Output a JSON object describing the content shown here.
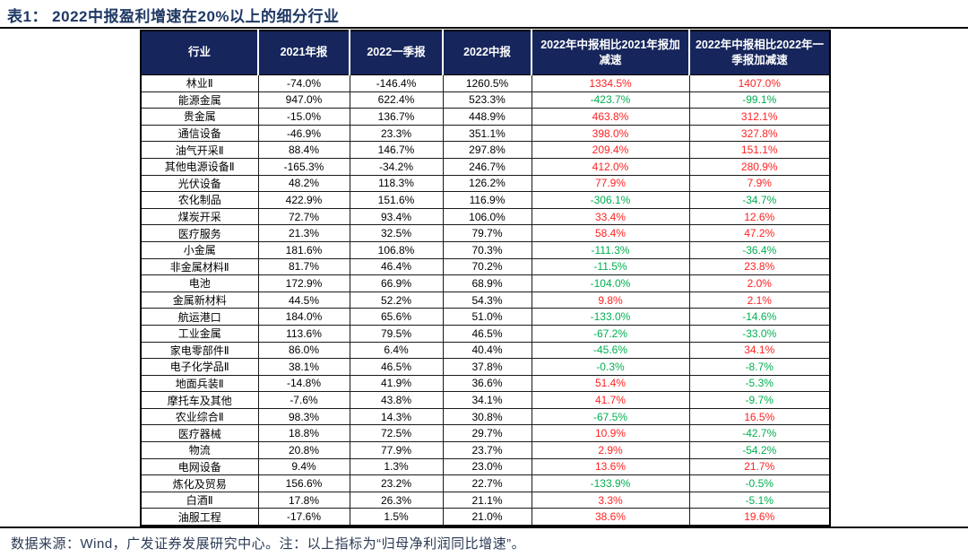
{
  "page": {
    "title": "表1： 2022中报盈利增速在20%以上的细分行业",
    "footer": "数据来源：Wind，广发证券发展研究中心。注：以上指标为“归母净利润同比增速”。"
  },
  "colors": {
    "header_bg": "#16265C",
    "title_text": "#1F3864",
    "positive_value": "#FF2222",
    "negative_value": "#00B050",
    "footer_text": "#2B3A55"
  },
  "table": {
    "columns": [
      "行业",
      "2021年报",
      "2022一季报",
      "2022中报",
      "2022年中报相比2021年报加减速",
      "2022年中报相比2022年一季报加减速"
    ],
    "rows": [
      [
        "林业Ⅱ",
        "-74.0%",
        "-146.4%",
        "1260.5%",
        "1334.5%",
        "1407.0%"
      ],
      [
        "能源金属",
        "947.0%",
        "622.4%",
        "523.3%",
        "-423.7%",
        "-99.1%"
      ],
      [
        "贵金属",
        "-15.0%",
        "136.7%",
        "448.9%",
        "463.8%",
        "312.1%"
      ],
      [
        "通信设备",
        "-46.9%",
        "23.3%",
        "351.1%",
        "398.0%",
        "327.8%"
      ],
      [
        "油气开采Ⅱ",
        "88.4%",
        "146.7%",
        "297.8%",
        "209.4%",
        "151.1%"
      ],
      [
        "其他电源设备Ⅱ",
        "-165.3%",
        "-34.2%",
        "246.7%",
        "412.0%",
        "280.9%"
      ],
      [
        "光伏设备",
        "48.2%",
        "118.3%",
        "126.2%",
        "77.9%",
        "7.9%"
      ],
      [
        "农化制品",
        "422.9%",
        "151.6%",
        "116.9%",
        "-306.1%",
        "-34.7%"
      ],
      [
        "煤炭开采",
        "72.7%",
        "93.4%",
        "106.0%",
        "33.4%",
        "12.6%"
      ],
      [
        "医疗服务",
        "21.3%",
        "32.5%",
        "79.7%",
        "58.4%",
        "47.2%"
      ],
      [
        "小金属",
        "181.6%",
        "106.8%",
        "70.3%",
        "-111.3%",
        "-36.4%"
      ],
      [
        "非金属材料Ⅱ",
        "81.7%",
        "46.4%",
        "70.2%",
        "-11.5%",
        "23.8%"
      ],
      [
        "电池",
        "172.9%",
        "66.9%",
        "68.9%",
        "-104.0%",
        "2.0%"
      ],
      [
        "金属新材料",
        "44.5%",
        "52.2%",
        "54.3%",
        "9.8%",
        "2.1%"
      ],
      [
        "航运港口",
        "184.0%",
        "65.6%",
        "51.0%",
        "-133.0%",
        "-14.6%"
      ],
      [
        "工业金属",
        "113.6%",
        "79.5%",
        "46.5%",
        "-67.2%",
        "-33.0%"
      ],
      [
        "家电零部件Ⅱ",
        "86.0%",
        "6.4%",
        "40.4%",
        "-45.6%",
        "34.1%"
      ],
      [
        "电子化学品Ⅱ",
        "38.1%",
        "46.5%",
        "37.8%",
        "-0.3%",
        "-8.7%"
      ],
      [
        "地面兵装Ⅱ",
        "-14.8%",
        "41.9%",
        "36.6%",
        "51.4%",
        "-5.3%"
      ],
      [
        "摩托车及其他",
        "-7.6%",
        "43.8%",
        "34.1%",
        "41.7%",
        "-9.7%"
      ],
      [
        "农业综合Ⅱ",
        "98.3%",
        "14.3%",
        "30.8%",
        "-67.5%",
        "16.5%"
      ],
      [
        "医疗器械",
        "18.8%",
        "72.5%",
        "29.7%",
        "10.9%",
        "-42.7%"
      ],
      [
        "物流",
        "20.8%",
        "77.9%",
        "23.7%",
        "2.9%",
        "-54.2%"
      ],
      [
        "电网设备",
        "9.4%",
        "1.3%",
        "23.0%",
        "13.6%",
        "21.7%"
      ],
      [
        "炼化及贸易",
        "156.6%",
        "23.2%",
        "22.7%",
        "-133.9%",
        "-0.5%"
      ],
      [
        "白酒Ⅱ",
        "17.8%",
        "26.3%",
        "21.1%",
        "3.3%",
        "-5.1%"
      ],
      [
        "油服工程",
        "-17.6%",
        "1.5%",
        "21.0%",
        "38.6%",
        "19.6%"
      ]
    ],
    "colored_column_start": 4
  }
}
